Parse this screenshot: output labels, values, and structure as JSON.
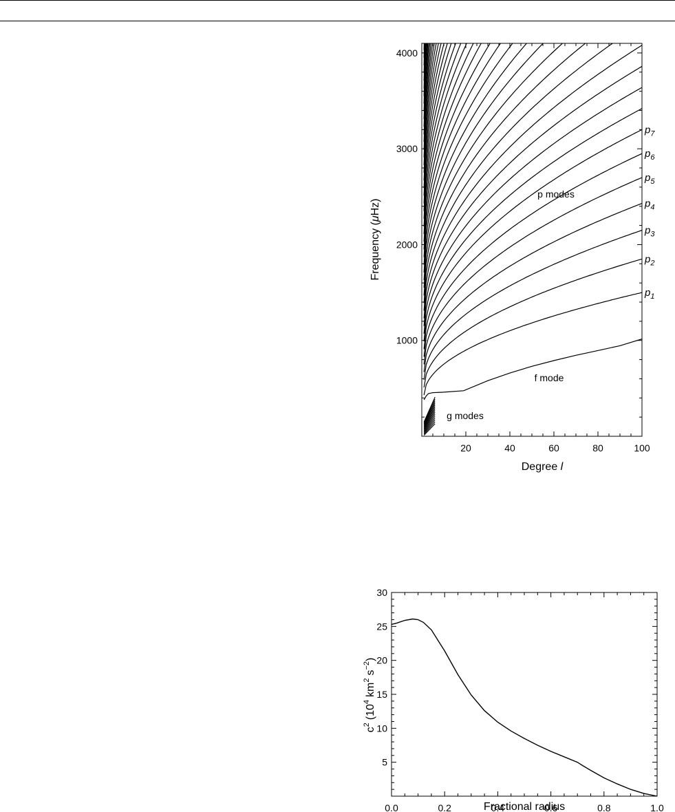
{
  "chart_data": [
    {
      "type": "line",
      "xlabel": "Degree l",
      "ylabel": "Frequency (μHz)",
      "xlim": [
        0,
        100
      ],
      "ylim": [
        0,
        4100
      ],
      "xticks": [
        20,
        40,
        60,
        80,
        100
      ],
      "yticks": [
        1000,
        2000,
        3000,
        4000
      ],
      "grid": false,
      "annotations": {
        "p_modes": "p modes",
        "f_mode": "f mode",
        "g_modes": "g modes"
      },
      "p_mode_labels": [
        {
          "base": "p",
          "sub": "7",
          "y": 3200
        },
        {
          "base": "p",
          "sub": "6",
          "y": 2950
        },
        {
          "base": "p",
          "sub": "5",
          "y": 2700
        },
        {
          "base": "p",
          "sub": "4",
          "y": 2430
        },
        {
          "base": "p",
          "sub": "3",
          "y": 2150
        },
        {
          "base": "p",
          "sub": "2",
          "y": 1850
        },
        {
          "base": "p",
          "sub": "1",
          "y": 1500
        }
      ],
      "f_mode": {
        "x": [
          1,
          2,
          3,
          5,
          10,
          19,
          30,
          40,
          50,
          60,
          70,
          80,
          90,
          100
        ],
        "y": [
          380,
          420,
          445,
          455,
          460,
          475,
          580,
          660,
          730,
          790,
          845,
          895,
          945,
          1015
        ]
      },
      "p_mode_ridges": {
        "degree_100_values": [
          1500,
          1850,
          2150,
          2430,
          2700,
          2950,
          3200,
          3420,
          3640,
          3860,
          4080
        ],
        "degree_1_values": [
          430,
          510,
          590,
          670,
          750,
          830,
          910,
          990,
          1070,
          1150,
          1230,
          1310,
          1390,
          1470,
          1550,
          1630,
          1710,
          1790,
          1870,
          1950,
          2030,
          2110,
          2190,
          2270,
          2350,
          2430,
          2510,
          2590,
          2670,
          2750,
          2830,
          2910,
          2990,
          3070,
          3150,
          3230,
          3310,
          3390,
          3470,
          3550,
          3630,
          3710,
          3790,
          3870,
          3950,
          4030
        ],
        "count": 46
      },
      "g_modes": {
        "x_range": [
          1,
          6
        ],
        "y_top_values": [
          130,
          150,
          170,
          190,
          210,
          230,
          250,
          270,
          290,
          310,
          330,
          350,
          370,
          390,
          410
        ],
        "y_bottom_values": [
          10,
          20,
          30,
          40,
          50,
          60,
          70,
          80,
          90,
          100,
          110,
          120,
          130,
          140,
          150
        ]
      }
    },
    {
      "type": "line",
      "xlabel": "Fractional radius",
      "ylabel_base": "c",
      "ylabel_units": "(10",
      "ylabel_units_exp": "4",
      "ylabel_km": "km",
      "ylabel_km_exp": "2",
      "ylabel_s": "s",
      "ylabel_s_exp": "−2",
      "ylabel_close": ")",
      "ylabel_base_exp": "2",
      "xlim": [
        0,
        1
      ],
      "ylim": [
        0,
        30
      ],
      "xticks": [
        "0.0",
        "0.2",
        "0.4",
        "0.6",
        "0.8",
        "1.0"
      ],
      "yticks": [
        "5",
        "10",
        "15",
        "20",
        "25",
        "30"
      ],
      "grid": false,
      "series": [
        {
          "x": [
            0,
            0.02,
            0.05,
            0.08,
            0.1,
            0.12,
            0.15,
            0.2,
            0.25,
            0.3,
            0.35,
            0.4,
            0.45,
            0.5,
            0.55,
            0.6,
            0.65,
            0.7,
            0.72,
            0.75,
            0.8,
            0.85,
            0.9,
            0.95,
            1.0
          ],
          "y": [
            25.3,
            25.5,
            25.9,
            26.1,
            26.0,
            25.6,
            24.5,
            21.4,
            17.9,
            14.9,
            12.6,
            10.9,
            9.6,
            8.5,
            7.5,
            6.6,
            5.8,
            5.0,
            4.5,
            3.8,
            2.7,
            1.8,
            1.0,
            0.4,
            0.0
          ]
        }
      ]
    }
  ]
}
